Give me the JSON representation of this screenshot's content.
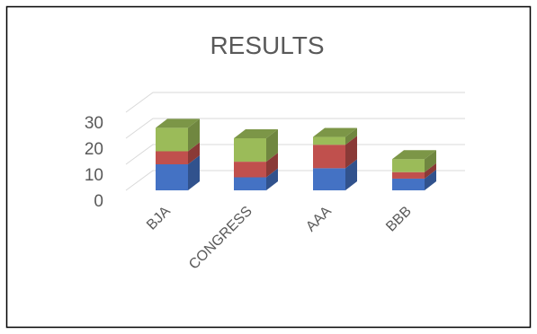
{
  "chart_data": {
    "type": "bar",
    "stacked": true,
    "three_d": true,
    "title": "RESULTS",
    "categories": [
      "BJA",
      "CONGRESS",
      "AAA",
      "BBB"
    ],
    "series": [
      {
        "values": [
          10,
          5,
          8.5,
          4.5
        ],
        "color": "#4472c4"
      },
      {
        "values": [
          5,
          6,
          9,
          2.5
        ],
        "color": "#c0504d"
      },
      {
        "values": [
          9,
          9,
          3,
          5
        ],
        "color": "#9bbb59"
      }
    ],
    "y_ticks": [
      "0",
      "10",
      "20",
      "30"
    ],
    "ylim": [
      0,
      30
    ],
    "grid": true,
    "legend": "none"
  }
}
